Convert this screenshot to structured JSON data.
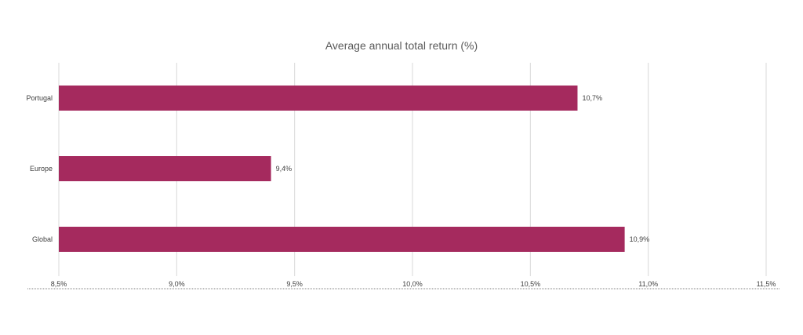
{
  "chart_data": {
    "type": "bar",
    "orientation": "horizontal",
    "title": "Average annual total return (%)",
    "categories": [
      "Portugal",
      "Europe",
      "Global"
    ],
    "values": [
      10.7,
      9.4,
      10.9
    ],
    "data_labels": [
      "10,7%",
      "9,4%",
      "10,9%"
    ],
    "xlim": [
      8.5,
      11.5
    ],
    "x_ticks": [
      8.5,
      9.0,
      9.5,
      10.0,
      10.5,
      11.0,
      11.5
    ],
    "x_tick_labels": [
      "8,5%",
      "9,0%",
      "9,5%",
      "10,0%",
      "10,5%",
      "11,0%",
      "11,5%"
    ],
    "xlabel": "",
    "ylabel": "",
    "grid": "vertical",
    "legend": "none",
    "colors": {
      "bar": "#a52a5e",
      "grid": "#d9d9d9",
      "text": "#404040",
      "title": "#595959"
    }
  }
}
